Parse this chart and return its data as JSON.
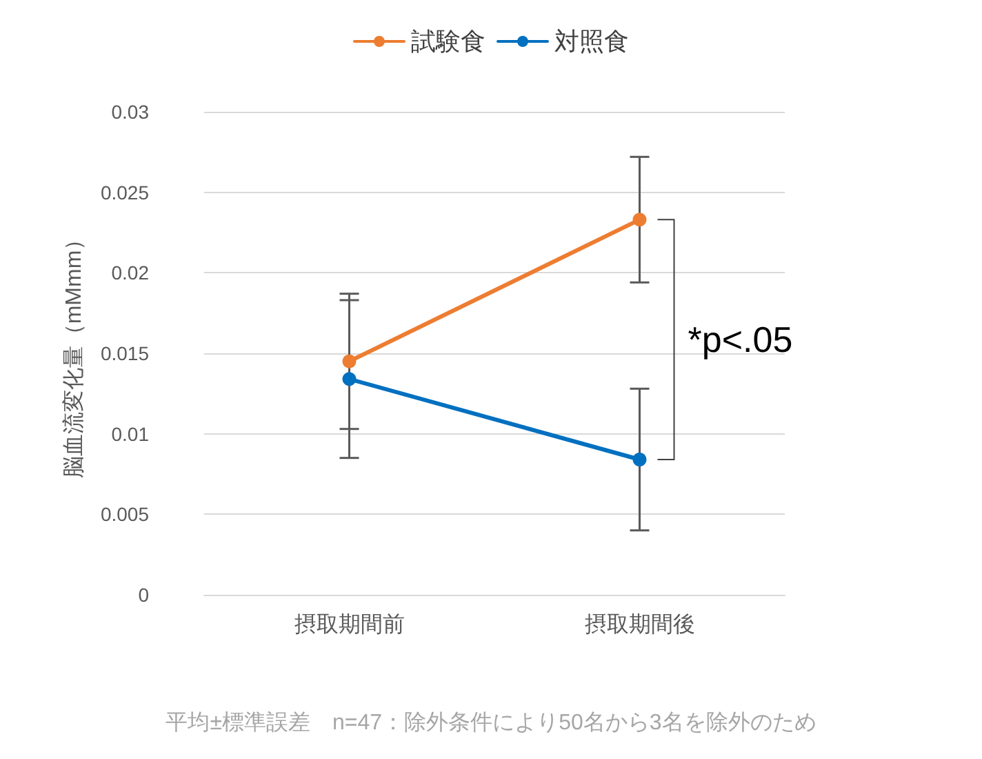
{
  "chart_data": {
    "type": "line",
    "ylabel": "脳血流変化量（mMmm）",
    "categories": [
      "摂取期間前",
      "摂取期間後"
    ],
    "series": [
      {
        "name": "試験食",
        "color": "#ed7d31",
        "values": [
          0.0145,
          0.0233
        ],
        "errors": [
          0.0042,
          0.0039
        ]
      },
      {
        "name": "対照食",
        "color": "#0070c0",
        "values": [
          0.0134,
          0.0084
        ],
        "errors": [
          0.0049,
          0.0044
        ]
      }
    ],
    "ylim": [
      0,
      0.03
    ],
    "yticks": [
      0,
      0.005,
      0.01,
      0.015,
      0.02,
      0.025,
      0.03
    ],
    "grid": "y",
    "legend": "top",
    "marker": "circle",
    "line_style": "solid",
    "annotations": [
      "*p<.05",
      "平均±標準誤差　n=47：除外条件により50名から3名を除外のため"
    ]
  }
}
